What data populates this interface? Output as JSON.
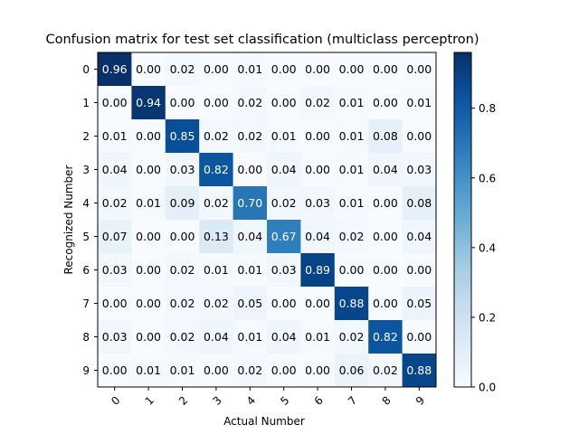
{
  "chart_data": {
    "type": "heatmap",
    "title": "Confusion matrix for test set classification (multiclass perceptron)",
    "xlabel": "Actual Number",
    "ylabel": "Recognized Number",
    "x_categories": [
      "0",
      "1",
      "2",
      "3",
      "4",
      "5",
      "6",
      "7",
      "8",
      "9"
    ],
    "y_categories": [
      "0",
      "1",
      "2",
      "3",
      "4",
      "5",
      "6",
      "7",
      "8",
      "9"
    ],
    "matrix": [
      [
        0.96,
        0.0,
        0.02,
        0.0,
        0.01,
        0.0,
        0.0,
        0.0,
        0.0,
        0.0
      ],
      [
        0.0,
        0.94,
        0.0,
        0.0,
        0.02,
        0.0,
        0.02,
        0.01,
        0.0,
        0.01
      ],
      [
        0.01,
        0.0,
        0.85,
        0.02,
        0.02,
        0.01,
        0.0,
        0.01,
        0.08,
        0.0
      ],
      [
        0.04,
        0.0,
        0.03,
        0.82,
        0.0,
        0.04,
        0.0,
        0.01,
        0.04,
        0.03
      ],
      [
        0.02,
        0.01,
        0.09,
        0.02,
        0.7,
        0.02,
        0.03,
        0.01,
        0.0,
        0.08
      ],
      [
        0.07,
        0.0,
        0.0,
        0.13,
        0.04,
        0.67,
        0.04,
        0.02,
        0.0,
        0.04
      ],
      [
        0.03,
        0.0,
        0.02,
        0.01,
        0.01,
        0.03,
        0.89,
        0.0,
        0.0,
        0.0
      ],
      [
        0.0,
        0.0,
        0.02,
        0.02,
        0.05,
        0.0,
        0.0,
        0.88,
        0.0,
        0.05
      ],
      [
        0.03,
        0.0,
        0.02,
        0.04,
        0.01,
        0.04,
        0.01,
        0.02,
        0.82,
        0.0
      ],
      [
        0.0,
        0.01,
        0.01,
        0.0,
        0.02,
        0.0,
        0.0,
        0.06,
        0.02,
        0.88
      ]
    ],
    "colormap": "Blues",
    "colorbar": {
      "range": [
        0.0,
        0.96
      ],
      "ticks": [
        0.0,
        0.2,
        0.4,
        0.6,
        0.8
      ],
      "tick_labels": [
        "0.0",
        "0.2",
        "0.4",
        "0.6",
        "0.8"
      ]
    }
  }
}
